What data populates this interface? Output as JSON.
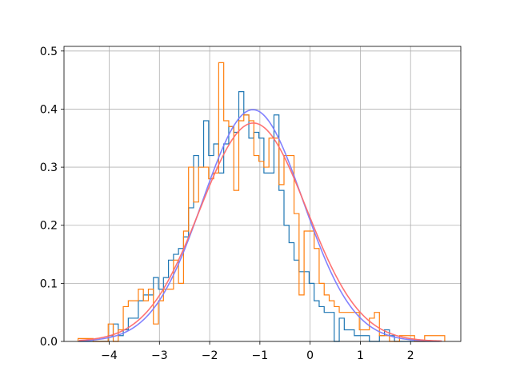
{
  "chart_data": {
    "type": "histogram",
    "title": "",
    "xlabel": "",
    "ylabel": "",
    "xlim": [
      -4.9,
      3.0
    ],
    "ylim": [
      0,
      0.508
    ],
    "xticks": [
      -4,
      -3,
      -2,
      -1,
      0,
      1,
      2
    ],
    "xtick_labels": [
      "−4",
      "−3",
      "−2",
      "−1",
      "0",
      "1",
      "2"
    ],
    "yticks": [
      0.0,
      0.1,
      0.2,
      0.3,
      0.4,
      0.5
    ],
    "ytick_labels": [
      "0.0",
      "0.1",
      "0.2",
      "0.3",
      "0.4",
      "0.5"
    ],
    "grid": true,
    "legend": "none",
    "histograms": [
      {
        "color": "#1f77b4",
        "bin_edges": [
          -4.62,
          -4.52,
          -4.42,
          -4.32,
          -4.22,
          -4.12,
          -4.02,
          -3.92,
          -3.82,
          -3.72,
          -3.62,
          -3.52,
          -3.42,
          -3.32,
          -3.22,
          -3.12,
          -3.02,
          -2.92,
          -2.82,
          -2.72,
          -2.62,
          -2.52,
          -2.42,
          -2.32,
          -2.22,
          -2.12,
          -2.02,
          -1.92,
          -1.82,
          -1.72,
          -1.62,
          -1.52,
          -1.42,
          -1.32,
          -1.22,
          -1.12,
          -1.02,
          -0.92,
          -0.82,
          -0.72,
          -0.62,
          -0.52,
          -0.42,
          -0.32,
          -0.22,
          -0.12,
          -0.02,
          0.08,
          0.18,
          0.28,
          0.38,
          0.48,
          0.58,
          0.68,
          0.78,
          0.88,
          0.98,
          1.08,
          1.18,
          1.28,
          1.38,
          1.48,
          1.58,
          1.68,
          1.78,
          1.88,
          1.98,
          2.08,
          2.18,
          2.28,
          2.38,
          2.48,
          2.58
        ],
        "heights": [
          0,
          0,
          0,
          0,
          0,
          0,
          0.01,
          0.03,
          0.01,
          0.02,
          0.04,
          0.04,
          0.07,
          0.08,
          0.08,
          0.11,
          0.09,
          0.11,
          0.14,
          0.15,
          0.16,
          0.18,
          0.23,
          0.32,
          0.3,
          0.38,
          0.32,
          0.34,
          0.29,
          0.34,
          0.37,
          0.36,
          0.43,
          0.39,
          0.35,
          0.36,
          0.35,
          0.29,
          0.29,
          0.39,
          0.26,
          0.2,
          0.17,
          0.14,
          0.12,
          0.12,
          0.1,
          0.07,
          0.06,
          0.05,
          0.05,
          0.0,
          0.04,
          0.02,
          0.02,
          0.01,
          0.01,
          0.01,
          0.0,
          0.0,
          0.01,
          0.02,
          0.01,
          0,
          0,
          0,
          0,
          0,
          0,
          0,
          0,
          0
        ]
      },
      {
        "color": "#ff7f0e",
        "bin_edges": [
          -4.62,
          -4.32,
          -4.02,
          -3.92,
          -3.82,
          -3.72,
          -3.62,
          -3.52,
          -3.42,
          -3.32,
          -3.22,
          -3.12,
          -3.02,
          -2.92,
          -2.82,
          -2.72,
          -2.62,
          -2.52,
          -2.42,
          -2.32,
          -2.22,
          -2.12,
          -2.02,
          -1.92,
          -1.82,
          -1.72,
          -1.62,
          -1.52,
          -1.42,
          -1.32,
          -1.22,
          -1.12,
          -1.02,
          -0.92,
          -0.82,
          -0.72,
          -0.62,
          -0.52,
          -0.42,
          -0.32,
          -0.22,
          -0.12,
          -0.02,
          0.08,
          0.18,
          0.28,
          0.38,
          0.48,
          0.58,
          0.68,
          0.78,
          0.88,
          0.98,
          1.08,
          1.18,
          1.28,
          1.38,
          1.48,
          1.58,
          1.68,
          1.78,
          1.88,
          1.98,
          2.08,
          2.18,
          2.28,
          2.38,
          2.48,
          2.58,
          2.68
        ],
        "heights": [
          0.005,
          0,
          0.03,
          0,
          0.02,
          0.06,
          0.07,
          0.07,
          0.09,
          0.07,
          0.09,
          0.03,
          0.07,
          0.09,
          0.09,
          0.14,
          0.1,
          0.19,
          0.3,
          0.24,
          0.3,
          0.3,
          0.28,
          0.29,
          0.48,
          0.38,
          0.37,
          0.26,
          0.38,
          0.39,
          0.38,
          0.32,
          0.31,
          0.3,
          0.35,
          0.35,
          0.27,
          0.32,
          0.32,
          0.22,
          0.08,
          0.19,
          0.19,
          0.16,
          0.1,
          0.08,
          0.07,
          0.06,
          0.05,
          0.05,
          0.05,
          0.05,
          0.02,
          0.02,
          0.04,
          0.05,
          0.01,
          0.01,
          0.0,
          0.0,
          0.01,
          0.01,
          0.01,
          0.0,
          0.0,
          0.01,
          0.01,
          0.01,
          0.01
        ]
      }
    ],
    "fit_curves": [
      {
        "color": "#7b7bff",
        "mean": -1.14,
        "std": 1.0,
        "peak": 0.399
      },
      {
        "color": "#ff6b6b",
        "mean": -1.13,
        "std": 1.06,
        "peak": 0.376
      }
    ]
  }
}
